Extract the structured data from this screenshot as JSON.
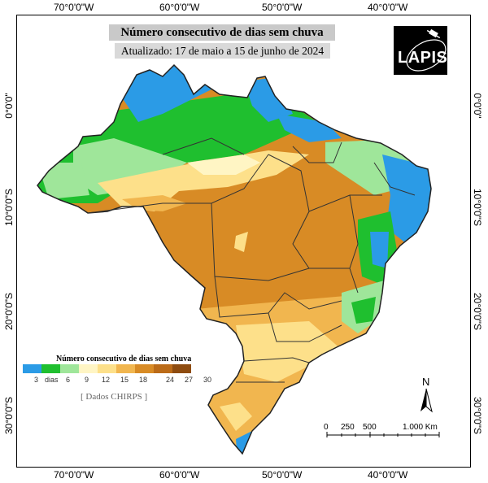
{
  "map": {
    "title": "Número consecutivo de dias sem chuva",
    "subtitle": "Atualizado: 17 de maio a 15 de junho de 2024",
    "logo_text": "LAPIS",
    "source": "[ Dados CHIRPS ]",
    "north_label": "N"
  },
  "axes": {
    "top": [
      "70°0'0\"W",
      "60°0'0\"W",
      "50°0'0\"W",
      "40°0'0\"W"
    ],
    "bottom": [
      "70°0'0\"W",
      "60°0'0\"W",
      "50°0'0\"W",
      "40°0'0\"W"
    ],
    "left": [
      "0°0'0\"",
      "10°0'0\"S",
      "20°0'0\"S",
      "30°0'0\"S"
    ],
    "right": [
      "0°0'0\"",
      "10°0'0\"S",
      "20°0'0\"S",
      "30°0'0\"S"
    ]
  },
  "legend": {
    "title": "Número consecutivo de dias sem chuva",
    "labels": [
      "3",
      "dias",
      "6",
      "9",
      "12",
      "15",
      "18",
      "24",
      "27",
      "30"
    ],
    "colors": [
      "#2b9be6",
      "#1fbf2f",
      "#9fe69a",
      "#fff5c4",
      "#fde08a",
      "#f1b64f",
      "#d88b25",
      "#bb6b18",
      "#8e4c10"
    ]
  },
  "scale": {
    "labels": [
      "0",
      "250",
      "500",
      "1.000 Km"
    ]
  }
}
